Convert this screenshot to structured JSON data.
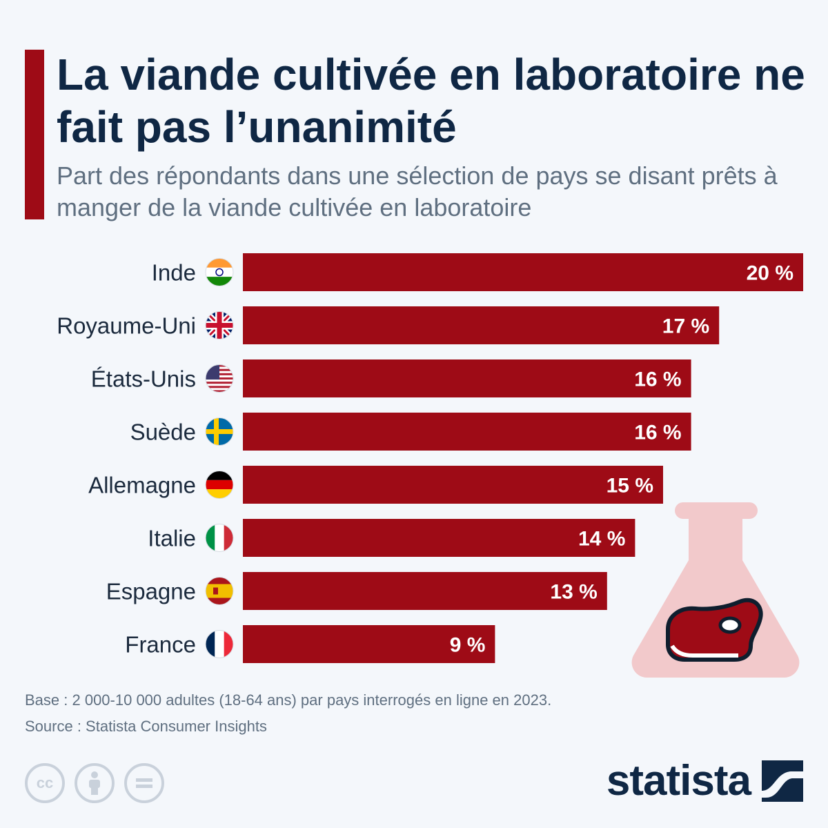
{
  "header": {
    "title": "La viande cultivée en laboratoire ne fait pas l’unanimité",
    "subtitle": "Part des répondants dans une sélection de pays se disant prêts à manger de la viande cultivée en laboratoire"
  },
  "colors": {
    "accent": "#9e0b16",
    "bar": "#9e0b16",
    "title": "#0f2744",
    "muted": "#5f6f80"
  },
  "chart_data": {
    "type": "bar",
    "orientation": "horizontal",
    "categories": [
      "Inde",
      "Royaume-Uni",
      "États-Unis",
      "Suède",
      "Allemagne",
      "Italie",
      "Espagne",
      "France"
    ],
    "values": [
      20,
      17,
      16,
      16,
      15,
      14,
      13,
      9
    ],
    "value_labels": [
      "20 %",
      "17 %",
      "16 %",
      "16 %",
      "15 %",
      "14 %",
      "13 %",
      "9 %"
    ],
    "flags": [
      "india-flag-icon",
      "uk-flag-icon",
      "usa-flag-icon",
      "sweden-flag-icon",
      "germany-flag-icon",
      "italy-flag-icon",
      "spain-flag-icon",
      "france-flag-icon"
    ],
    "xlim": [
      0,
      20
    ],
    "title": "",
    "xlabel": "",
    "ylabel": "",
    "grid": false
  },
  "footer": {
    "base": "Base : 2 000-10 000 adultes (18-64 ans) par pays interrogés en ligne en 2023.",
    "source": "Source : Statista Consumer Insights",
    "brand": "statista"
  },
  "license_icons": [
    "cc-icon",
    "attribution-icon",
    "no-derivatives-icon"
  ]
}
